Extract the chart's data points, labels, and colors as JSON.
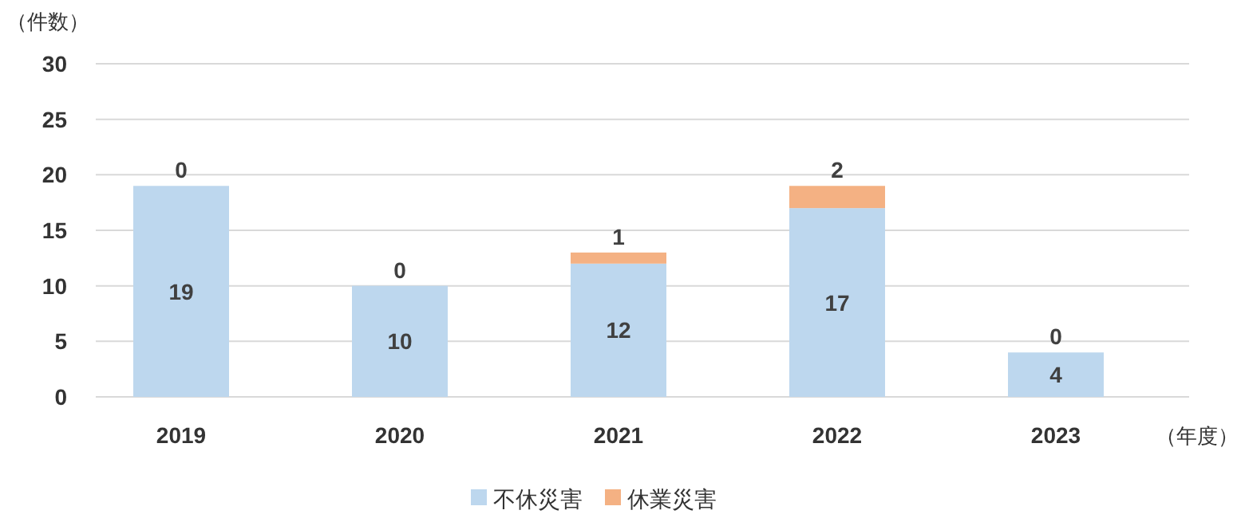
{
  "chart_data": {
    "type": "bar",
    "stacked": true,
    "ylabel": "（件数）",
    "xlabel": "（年度）",
    "categories": [
      "2019",
      "2020",
      "2021",
      "2022",
      "2023"
    ],
    "series": [
      {
        "name": "不休災害",
        "color": "#bdd7ee",
        "values": [
          19,
          10,
          12,
          17,
          4
        ]
      },
      {
        "name": "休業災害",
        "color": "#f4b183",
        "values": [
          0,
          0,
          1,
          2,
          0
        ]
      }
    ],
    "ylim": [
      0,
      30
    ],
    "yticks": [
      0,
      5,
      10,
      15,
      20,
      25,
      30
    ],
    "grid": "y",
    "legend": "bottom",
    "data_labels": true
  }
}
